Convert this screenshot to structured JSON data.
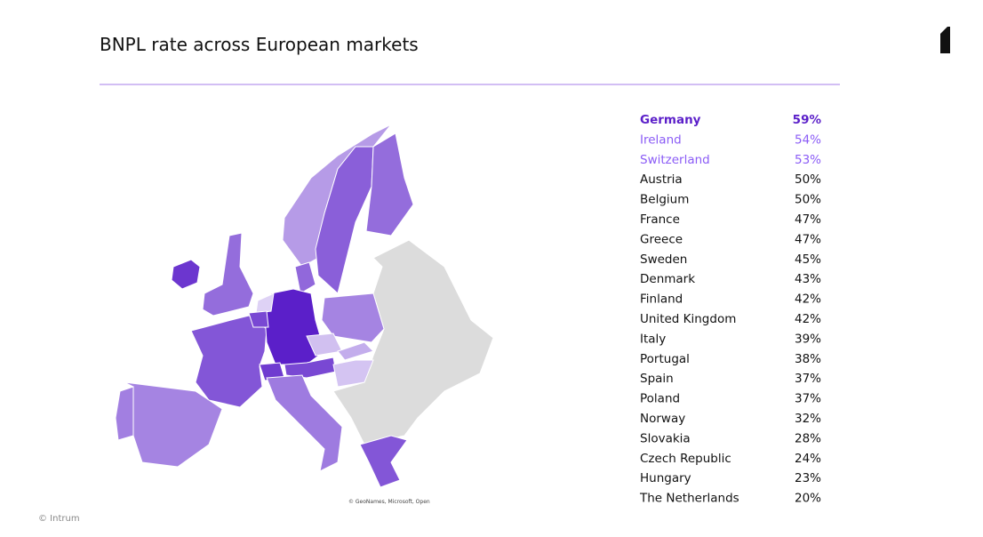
{
  "header": {
    "title": "BNPL rate across European markets"
  },
  "table": {
    "rows": [
      {
        "country": "Germany",
        "value": 59,
        "value_label": "59%"
      },
      {
        "country": "Ireland",
        "value": 54,
        "value_label": "54%"
      },
      {
        "country": "Switzerland",
        "value": 53,
        "value_label": "53%"
      },
      {
        "country": "Austria",
        "value": 50,
        "value_label": "50%"
      },
      {
        "country": "Belgium",
        "value": 50,
        "value_label": "50%"
      },
      {
        "country": "France",
        "value": 47,
        "value_label": "47%"
      },
      {
        "country": "Greece",
        "value": 47,
        "value_label": "47%"
      },
      {
        "country": "Sweden",
        "value": 45,
        "value_label": "45%"
      },
      {
        "country": "Denmark",
        "value": 43,
        "value_label": "43%"
      },
      {
        "country": "Finland",
        "value": 42,
        "value_label": "42%"
      },
      {
        "country": "United Kingdom",
        "value": 42,
        "value_label": "42%"
      },
      {
        "country": "Italy",
        "value": 39,
        "value_label": "39%"
      },
      {
        "country": "Portugal",
        "value": 38,
        "value_label": "38%"
      },
      {
        "country": "Spain",
        "value": 37,
        "value_label": "37%"
      },
      {
        "country": "Poland",
        "value": 37,
        "value_label": "37%"
      },
      {
        "country": "Norway",
        "value": 32,
        "value_label": "32%"
      },
      {
        "country": "Slovakia",
        "value": 28,
        "value_label": "28%"
      },
      {
        "country": "Czech Republic",
        "value": 24,
        "value_label": "24%"
      },
      {
        "country": "Hungary",
        "value": 23,
        "value_label": "23%"
      },
      {
        "country": "The Netherlands",
        "value": 20,
        "value_label": "20%"
      }
    ]
  },
  "map": {
    "attribution": "© GeoNames, Microsoft, Open"
  },
  "footer": {
    "copyright": "© Intrum"
  }
}
